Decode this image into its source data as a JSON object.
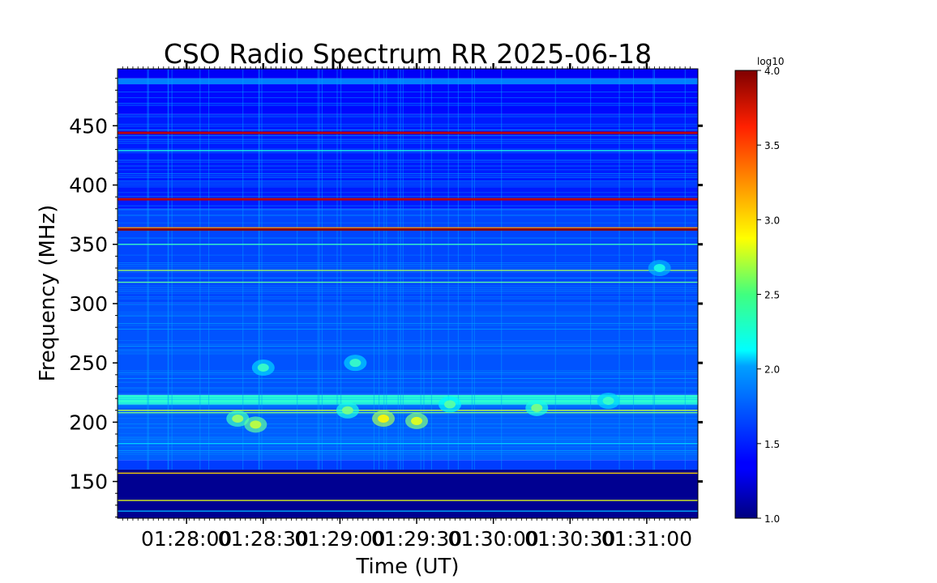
{
  "chart_data": {
    "type": "heatmap",
    "title": "CSO Radio Spectrum RR 2025-06-18",
    "xlabel": "Time (UT)",
    "ylabel": "Frequency (MHz)",
    "x_ticks": [
      "01:28:00",
      "01:28:30",
      "01:29:00",
      "01:29:30",
      "01:30:00",
      "01:30:30",
      "01:31:00"
    ],
    "x_tick_seconds": [
      0,
      30,
      60,
      90,
      120,
      150,
      180
    ],
    "xlim_seconds": [
      -27,
      200
    ],
    "y_ticks": [
      150,
      200,
      250,
      300,
      350,
      400,
      450
    ],
    "ylim": [
      119,
      498
    ],
    "colorbar": {
      "label": "log10",
      "ticks": [
        "1.0",
        "1.5",
        "2.0",
        "2.5",
        "3.0",
        "3.5",
        "4.0"
      ],
      "range": [
        1.0,
        4.0
      ],
      "colormap": "jet"
    },
    "bands": [
      {
        "f0": 119,
        "f1": 160,
        "level": 1.05
      },
      {
        "f0": 160,
        "f1": 168,
        "level": 1.55
      },
      {
        "f0": 168,
        "f1": 215,
        "level": 1.65
      },
      {
        "f0": 215,
        "f1": 223,
        "level": 2.25
      },
      {
        "f0": 223,
        "f1": 300,
        "level": 1.62
      },
      {
        "f0": 300,
        "f1": 380,
        "level": 1.58
      },
      {
        "f0": 380,
        "f1": 460,
        "level": 1.45
      },
      {
        "f0": 460,
        "f1": 485,
        "level": 1.4
      },
      {
        "f0": 485,
        "f1": 490,
        "level": 1.75
      },
      {
        "f0": 490,
        "f1": 498,
        "level": 1.35
      }
    ],
    "lines": [
      {
        "f": 362.5,
        "level": 3.95
      },
      {
        "f": 364,
        "level": 3.2
      },
      {
        "f": 388,
        "level": 3.8
      },
      {
        "f": 350,
        "level": 2.3
      },
      {
        "f": 328,
        "level": 2.6
      },
      {
        "f": 318,
        "level": 2.4
      },
      {
        "f": 210,
        "level": 2.7
      },
      {
        "f": 208,
        "level": 2.5
      },
      {
        "f": 182,
        "level": 2.0
      },
      {
        "f": 157,
        "level": 3.0
      },
      {
        "f": 134,
        "level": 2.8
      },
      {
        "f": 125,
        "level": 1.9
      },
      {
        "f": 429,
        "level": 2.2
      },
      {
        "f": 444,
        "level": 3.8
      }
    ],
    "bursts": [
      {
        "t": 20,
        "f": 203,
        "level": 2.6
      },
      {
        "t": 27,
        "f": 198,
        "level": 2.7
      },
      {
        "t": 30,
        "f": 246,
        "level": 2.3
      },
      {
        "t": 63,
        "f": 210,
        "level": 2.5
      },
      {
        "t": 66,
        "f": 250,
        "level": 2.3
      },
      {
        "t": 77,
        "f": 203,
        "level": 2.9
      },
      {
        "t": 90,
        "f": 201,
        "level": 2.8
      },
      {
        "t": 103,
        "f": 215,
        "level": 2.4
      },
      {
        "t": 137,
        "f": 212,
        "level": 2.5
      },
      {
        "t": 165,
        "f": 218,
        "level": 2.3
      },
      {
        "t": 185,
        "f": 330,
        "level": 2.2
      }
    ]
  }
}
